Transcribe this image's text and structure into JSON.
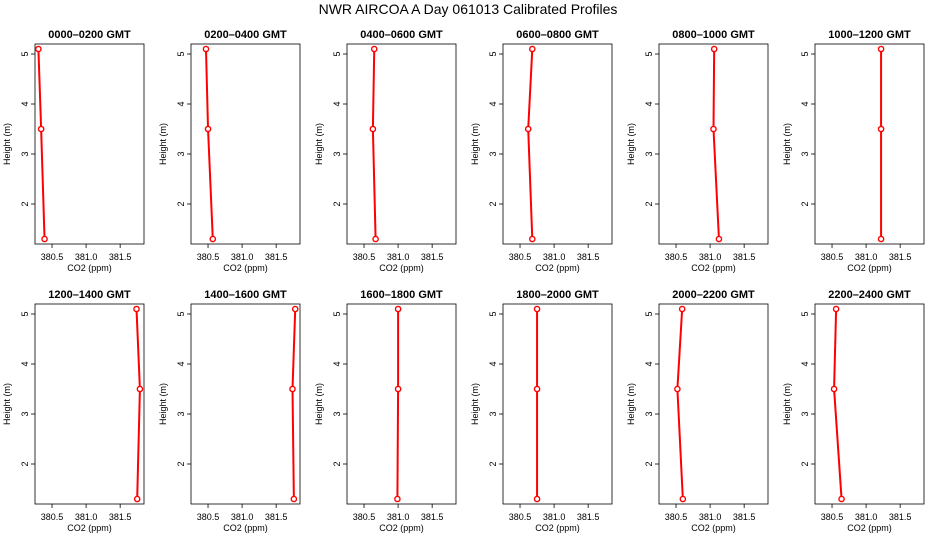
{
  "title": "NWR AIRCOA A  Day 061013  Calibrated Profiles",
  "chart_data": {
    "type": "line",
    "xlabel": "CO2 (ppm)",
    "ylabel": "Height (m)",
    "xlim": [
      380.25,
      381.85
    ],
    "ylim": [
      1.2,
      5.2
    ],
    "x_ticks": [
      "380.5",
      "381.0",
      "381.5"
    ],
    "x_tick_values": [
      380.5,
      381.0,
      381.5
    ],
    "y_ticks": [
      "2",
      "3",
      "4",
      "5"
    ],
    "y_tick_values": [
      2,
      3,
      4,
      5
    ],
    "color": "#ff0000",
    "panels": [
      {
        "title": "0000–0200 GMT",
        "points": [
          {
            "x": 380.3,
            "y": 5.1
          },
          {
            "x": 380.34,
            "y": 3.5
          },
          {
            "x": 380.39,
            "y": 1.3
          }
        ]
      },
      {
        "title": "0200–0400 GMT",
        "points": [
          {
            "x": 380.47,
            "y": 5.1
          },
          {
            "x": 380.5,
            "y": 3.5
          },
          {
            "x": 380.57,
            "y": 1.3
          }
        ]
      },
      {
        "title": "0400–0600 GMT",
        "points": [
          {
            "x": 380.65,
            "y": 5.1
          },
          {
            "x": 380.63,
            "y": 3.5
          },
          {
            "x": 380.67,
            "y": 1.3
          }
        ]
      },
      {
        "title": "0600–0800 GMT",
        "points": [
          {
            "x": 380.68,
            "y": 5.1
          },
          {
            "x": 380.62,
            "y": 3.5
          },
          {
            "x": 380.68,
            "y": 1.3
          }
        ]
      },
      {
        "title": "0800–1000 GMT",
        "points": [
          {
            "x": 381.06,
            "y": 5.1
          },
          {
            "x": 381.05,
            "y": 3.5
          },
          {
            "x": 381.13,
            "y": 1.3
          }
        ]
      },
      {
        "title": "1000–1200 GMT",
        "points": [
          {
            "x": 381.22,
            "y": 5.1
          },
          {
            "x": 381.22,
            "y": 3.5
          },
          {
            "x": 381.22,
            "y": 1.3
          }
        ]
      },
      {
        "title": "1200–1400 GMT",
        "points": [
          {
            "x": 381.74,
            "y": 5.1
          },
          {
            "x": 381.79,
            "y": 3.5
          },
          {
            "x": 381.75,
            "y": 1.3
          }
        ]
      },
      {
        "title": "1400–1600 GMT",
        "points": [
          {
            "x": 381.78,
            "y": 5.1
          },
          {
            "x": 381.74,
            "y": 3.5
          },
          {
            "x": 381.76,
            "y": 1.3
          }
        ]
      },
      {
        "title": "1600–1800 GMT",
        "points": [
          {
            "x": 381.0,
            "y": 5.1
          },
          {
            "x": 381.0,
            "y": 3.5
          },
          {
            "x": 380.99,
            "y": 1.3
          }
        ]
      },
      {
        "title": "1800–2000 GMT",
        "points": [
          {
            "x": 380.75,
            "y": 5.1
          },
          {
            "x": 380.75,
            "y": 3.5
          },
          {
            "x": 380.75,
            "y": 1.3
          }
        ]
      },
      {
        "title": "2000–2200 GMT",
        "points": [
          {
            "x": 380.59,
            "y": 5.1
          },
          {
            "x": 380.52,
            "y": 3.5
          },
          {
            "x": 380.6,
            "y": 1.3
          }
        ]
      },
      {
        "title": "2200–2400 GMT",
        "points": [
          {
            "x": 380.56,
            "y": 5.1
          },
          {
            "x": 380.53,
            "y": 3.5
          },
          {
            "x": 380.64,
            "y": 1.3
          }
        ]
      }
    ]
  }
}
